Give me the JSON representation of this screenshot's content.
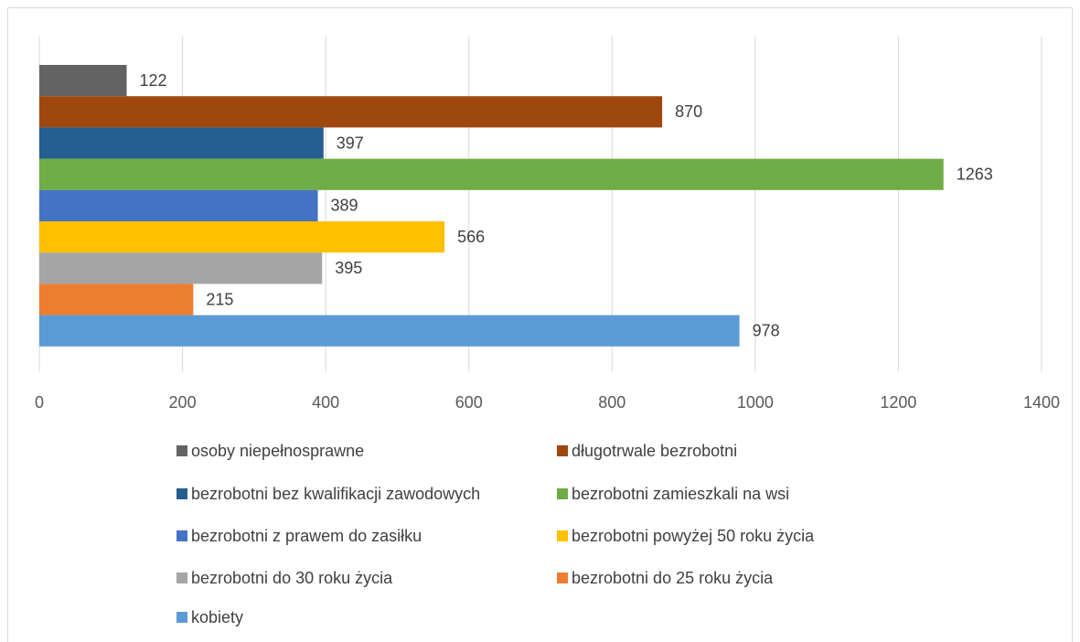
{
  "chart_data": {
    "type": "bar",
    "orientation": "horizontal",
    "grid": true,
    "legend": "bottom",
    "xlim": [
      0,
      1400
    ],
    "xticks": [
      0,
      200,
      400,
      600,
      800,
      1000,
      1200,
      1400
    ],
    "series": [
      {
        "name": "osoby niepełnosprawne",
        "color": "#636363",
        "values": [
          122
        ]
      },
      {
        "name": "długotrwale bezrobotni",
        "color": "#9e480e",
        "values": [
          870
        ]
      },
      {
        "name": "bezrobotni bez kwalifikacji zawodowych",
        "color": "#255e91",
        "values": [
          397
        ]
      },
      {
        "name": "bezrobotni zamieszkali na wsi",
        "color": "#70ad47",
        "values": [
          1263
        ]
      },
      {
        "name": "bezrobotni z prawem do zasiłku",
        "color": "#4472c4",
        "values": [
          389
        ]
      },
      {
        "name": "bezrobotni powyżej 50 roku życia",
        "color": "#ffc000",
        "values": [
          566
        ]
      },
      {
        "name": "bezrobotni do 30 roku życia",
        "color": "#a5a5a5",
        "values": [
          395
        ]
      },
      {
        "name": "bezrobotni do 25 roku życia",
        "color": "#ed7d31",
        "values": [
          215
        ]
      },
      {
        "name": "kobiety",
        "color": "#5b9bd5",
        "values": [
          978
        ]
      }
    ]
  }
}
